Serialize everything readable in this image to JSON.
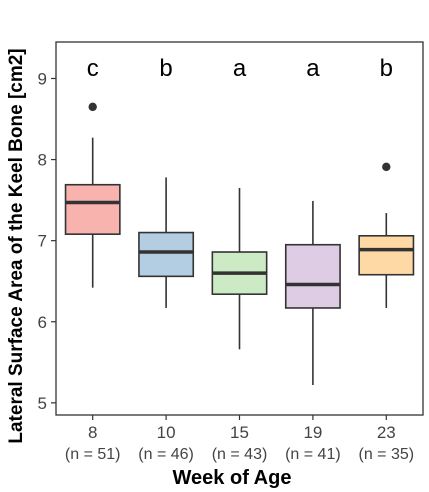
{
  "chart_data": {
    "type": "boxplot",
    "xlabel": "Week of Age",
    "ylabel": "Lateral Surface Area of the Keel Bone [cm2]",
    "ylim": [
      4.85,
      9.45
    ],
    "yticks": [
      5,
      6,
      7,
      8,
      9
    ],
    "grid": false,
    "categories": [
      "8",
      "10",
      "15",
      "19",
      "23"
    ],
    "n_labels": [
      "(n = 51)",
      "(n = 46)",
      "(n = 43)",
      "(n = 41)",
      "(n = 35)"
    ],
    "significance": [
      "c",
      "b",
      "a",
      "a",
      "b"
    ],
    "colors": [
      "#f8b3ae",
      "#b3cde3",
      "#ccebc5",
      "#decbe4",
      "#fed9a6"
    ],
    "boxes": [
      {
        "min": 6.42,
        "q1": 7.08,
        "median": 7.47,
        "q3": 7.69,
        "max": 8.27,
        "outliers": [
          8.65
        ]
      },
      {
        "min": 6.17,
        "q1": 6.56,
        "median": 6.86,
        "q3": 7.1,
        "max": 7.78,
        "outliers": []
      },
      {
        "min": 5.66,
        "q1": 6.34,
        "median": 6.6,
        "q3": 6.86,
        "max": 7.65,
        "outliers": []
      },
      {
        "min": 5.22,
        "q1": 6.17,
        "median": 6.46,
        "q3": 6.95,
        "max": 7.49,
        "outliers": []
      },
      {
        "min": 6.17,
        "q1": 6.58,
        "median": 6.89,
        "q3": 7.06,
        "max": 7.34,
        "outliers": [
          7.91
        ]
      }
    ]
  }
}
